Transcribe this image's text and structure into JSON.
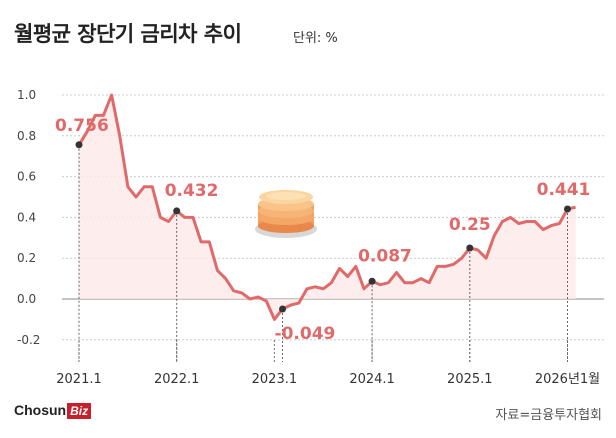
{
  "header": {
    "title": "월평균 장단기 금리차 추이",
    "unit": "단위: %"
  },
  "footer": {
    "logo_main": "Chosun",
    "logo_accent": "Biz",
    "source": "자료=금융투자협회"
  },
  "colors": {
    "line": "#e06a6a",
    "fill": "#fde8e8",
    "annotation": "#e06a6a",
    "grid": "#cccccc"
  },
  "chart_data": {
    "type": "area",
    "title": "월평균 장단기 금리차 추이",
    "ylabel": "",
    "xlabel": "",
    "ylim": [
      -0.25,
      1.05
    ],
    "yticks": [
      "1.0",
      "0.8",
      "0.6",
      "0.4",
      "0.2",
      "0.0",
      "-0.2"
    ],
    "ytick_values": [
      1.0,
      0.8,
      0.6,
      0.4,
      0.2,
      0.0,
      -0.2
    ],
    "xticks": [
      {
        "label": "2021.1",
        "index": 0
      },
      {
        "label": "2022.1",
        "index": 12
      },
      {
        "label": "2023.1",
        "index": 24
      },
      {
        "label": "2024.1",
        "index": 36
      },
      {
        "label": "2025.1",
        "index": 48
      },
      {
        "label": "2026년1월",
        "index": 60
      }
    ],
    "series": [
      {
        "values": [
          0.756,
          0.82,
          0.9,
          0.9,
          1.0,
          0.8,
          0.55,
          0.5,
          0.55,
          0.55,
          0.4,
          0.38,
          0.432,
          0.4,
          0.4,
          0.28,
          0.28,
          0.14,
          0.1,
          0.04,
          0.03,
          0.0,
          0.01,
          -0.01,
          -0.1,
          -0.049,
          -0.03,
          -0.02,
          0.05,
          0.06,
          0.05,
          0.08,
          0.15,
          0.11,
          0.16,
          0.05,
          0.087,
          0.07,
          0.08,
          0.13,
          0.08,
          0.08,
          0.1,
          0.08,
          0.16,
          0.16,
          0.17,
          0.2,
          0.25,
          0.24,
          0.2,
          0.31,
          0.38,
          0.4,
          0.37,
          0.38,
          0.38,
          0.34,
          0.36,
          0.37,
          0.441,
          0.45
        ]
      }
    ],
    "annotations": [
      {
        "index": 0,
        "label": "0.756"
      },
      {
        "index": 12,
        "label": "0.432"
      },
      {
        "index": 25,
        "label": "-0.049"
      },
      {
        "index": 36,
        "label": "0.087"
      },
      {
        "index": 48,
        "label": "0.25"
      },
      {
        "index": 60,
        "label": "0.441"
      }
    ],
    "grid": true
  }
}
